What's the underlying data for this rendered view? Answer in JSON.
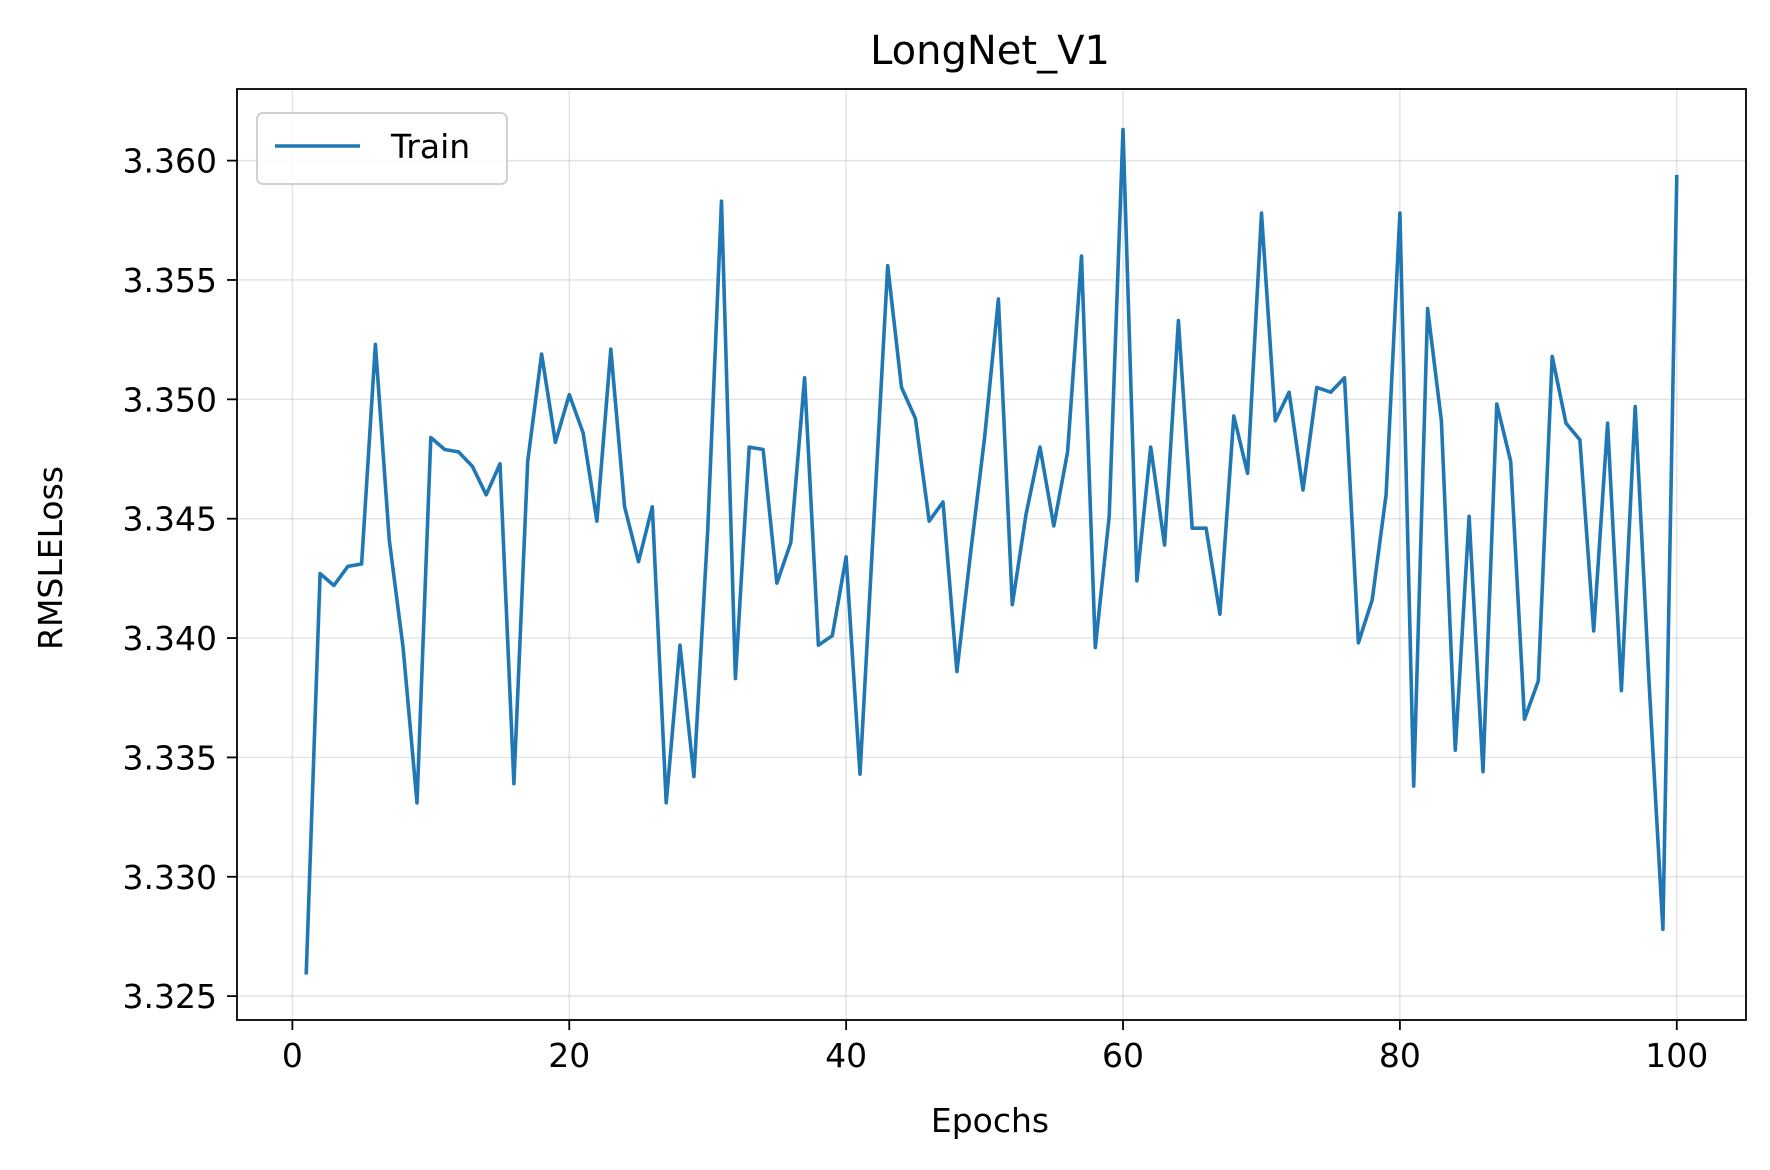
{
  "chart_data": {
    "type": "line",
    "title": "LongNet_V1",
    "xlabel": "Epochs",
    "ylabel": "RMSLELoss",
    "xlim": [
      -4,
      105
    ],
    "ylim": [
      3.324,
      3.363
    ],
    "xticks": [
      0,
      20,
      40,
      60,
      80,
      100
    ],
    "xtick_labels": [
      "0",
      "20",
      "40",
      "60",
      "80",
      "100"
    ],
    "yticks": [
      3.325,
      3.33,
      3.335,
      3.34,
      3.345,
      3.35,
      3.355,
      3.36
    ],
    "ytick_labels": [
      "3.325",
      "3.330",
      "3.335",
      "3.340",
      "3.345",
      "3.350",
      "3.355",
      "3.360"
    ],
    "grid": true,
    "legend_position": "top-left",
    "series": [
      {
        "name": "Train",
        "color": "#1f77b4",
        "x": [
          1,
          2,
          3,
          4,
          5,
          6,
          7,
          8,
          9,
          10,
          11,
          12,
          13,
          14,
          15,
          16,
          17,
          18,
          19,
          20,
          21,
          22,
          23,
          24,
          25,
          26,
          27,
          28,
          29,
          30,
          31,
          32,
          33,
          34,
          35,
          36,
          37,
          38,
          39,
          40,
          41,
          42,
          43,
          44,
          45,
          46,
          47,
          48,
          49,
          50,
          51,
          52,
          53,
          54,
          55,
          56,
          57,
          58,
          59,
          60,
          61,
          62,
          63,
          64,
          65,
          66,
          67,
          68,
          69,
          70,
          71,
          72,
          73,
          74,
          75,
          76,
          77,
          78,
          79,
          80,
          81,
          82,
          83,
          84,
          85,
          86,
          87,
          88,
          89,
          90,
          91,
          92,
          93,
          94,
          95,
          96,
          97,
          98,
          99,
          100
        ],
        "y": [
          3.3259,
          3.3427,
          3.3422,
          3.343,
          3.3431,
          3.3523,
          3.3441,
          3.3396,
          3.3331,
          3.3484,
          3.3479,
          3.3478,
          3.3472,
          3.346,
          3.3473,
          3.3339,
          3.3474,
          3.3519,
          3.3482,
          3.3502,
          3.3486,
          3.3449,
          3.3521,
          3.3455,
          3.3432,
          3.3455,
          3.3331,
          3.3397,
          3.3342,
          3.3445,
          3.3583,
          3.3383,
          3.348,
          3.3479,
          3.3423,
          3.344,
          3.3509,
          3.3397,
          3.3401,
          3.3434,
          3.3343,
          3.3449,
          3.3556,
          3.3505,
          3.3492,
          3.3449,
          3.3457,
          3.3386,
          3.3436,
          3.3484,
          3.3542,
          3.3414,
          3.3452,
          3.348,
          3.3447,
          3.3478,
          3.356,
          3.3396,
          3.3451,
          3.3613,
          3.3424,
          3.348,
          3.3439,
          3.3533,
          3.3446,
          3.3446,
          3.341,
          3.3493,
          3.3469,
          3.3578,
          3.3491,
          3.3503,
          3.3462,
          3.3505,
          3.3503,
          3.3509,
          3.3398,
          3.3416,
          3.346,
          3.3578,
          3.3338,
          3.3538,
          3.3491,
          3.3353,
          3.3451,
          3.3344,
          3.3498,
          3.3474,
          3.3366,
          3.3382,
          3.3518,
          3.349,
          3.3483,
          3.3403,
          3.349,
          3.3378,
          3.3497,
          3.3381,
          3.3278,
          3.3594
        ]
      }
    ]
  }
}
